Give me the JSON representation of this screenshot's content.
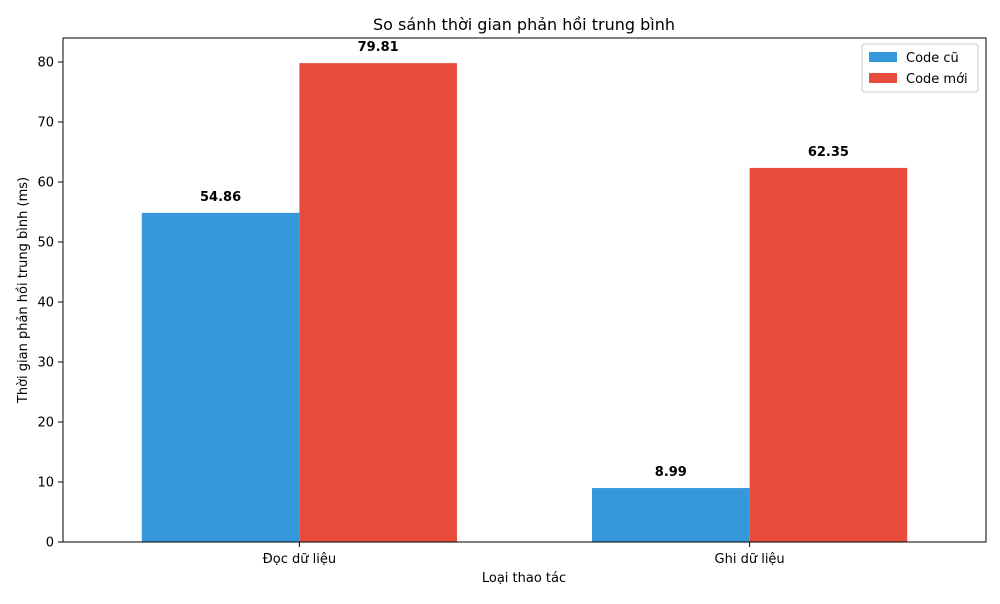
{
  "chart_data": {
    "type": "bar",
    "title": "So sánh thời gian phản hồi trung bình",
    "xlabel": "Loại thao tác",
    "ylabel": "Thời gian phản hồi trung bình (ms)",
    "categories": [
      "Đọc dữ liệu",
      "Ghi dữ liệu"
    ],
    "series": [
      {
        "name": "Code cũ",
        "color": "#3498db",
        "values": [
          54.86,
          8.99
        ]
      },
      {
        "name": "Code mới",
        "color": "#e74c3c",
        "values": [
          79.81,
          62.35
        ]
      }
    ],
    "data_labels": [
      [
        "54.86",
        "8.99"
      ],
      [
        "79.81",
        "62.35"
      ]
    ],
    "ylim": [
      0,
      84
    ],
    "yticks": [
      0,
      10,
      20,
      30,
      40,
      50,
      60,
      70,
      80
    ],
    "grid": false,
    "legend_position": "top-right"
  }
}
